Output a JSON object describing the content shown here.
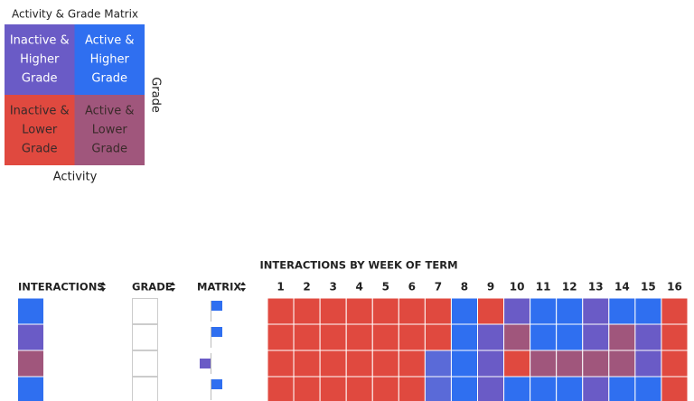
{
  "legend": {
    "title": "Activity & Grade Matrix",
    "cells": [
      {
        "lines": [
          "Inactive &",
          "Higher",
          "Grade"
        ],
        "color": "#6a5bc6",
        "text_color": "#ffffff"
      },
      {
        "lines": [
          "Active &",
          "Higher",
          "Grade"
        ],
        "color": "#2f6ff0",
        "text_color": "#ffffff"
      },
      {
        "lines": [
          "Inactive &",
          "Lower",
          "Grade"
        ],
        "color": "#e0493f",
        "text_color": "#3a2a2a"
      },
      {
        "lines": [
          "Active &",
          "Lower",
          "Grade"
        ],
        "color": "#a0567c",
        "text_color": "#3a2a2a"
      }
    ],
    "y_axis_label": "Grade",
    "x_axis_label": "Activity"
  },
  "table": {
    "title": "INTERACTIONS BY WEEK OF TERM",
    "columns": [
      "INTERACTIONS",
      "GRADE",
      "MATRIX"
    ],
    "weeks": [
      1,
      2,
      3,
      4,
      5,
      6,
      7,
      8,
      9,
      10,
      11,
      12,
      13,
      14,
      15,
      16
    ],
    "rows": [
      {
        "interactions": "#2f6ff0",
        "matrix": "#2f6ff0",
        "cells": [
          "#e0493f",
          "#e0493f",
          "#e0493f",
          "#e0493f",
          "#e0493f",
          "#e0493f",
          "#e0493f",
          "#2f6ff0",
          "#e0493f",
          "#6a5bc6",
          "#2f6ff0",
          "#2f6ff0",
          "#6a5bc6",
          "#2f6ff0",
          "#2f6ff0",
          "#e0493f"
        ]
      },
      {
        "interactions": "#6a5bc6",
        "matrix": "#2f6ff0",
        "cells": [
          "#e0493f",
          "#e0493f",
          "#e0493f",
          "#e0493f",
          "#e0493f",
          "#e0493f",
          "#e0493f",
          "#2f6ff0",
          "#6a5bc6",
          "#a0567c",
          "#2f6ff0",
          "#2f6ff0",
          "#6a5bc6",
          "#a0567c",
          "#6a5bc6",
          "#e0493f"
        ]
      },
      {
        "interactions": "#a0567c",
        "matrix": "#6a5bc6",
        "cells": [
          "#e0493f",
          "#e0493f",
          "#e0493f",
          "#e0493f",
          "#e0493f",
          "#e0493f",
          "#5a6ad8",
          "#2f6ff0",
          "#6a5bc6",
          "#e0493f",
          "#a0567c",
          "#a0567c",
          "#a0567c",
          "#a0567c",
          "#6a5bc6",
          "#e0493f"
        ]
      },
      {
        "interactions": "#2f6ff0",
        "matrix": "#2f6ff0",
        "cells": [
          "#e0493f",
          "#e0493f",
          "#e0493f",
          "#e0493f",
          "#e0493f",
          "#e0493f",
          "#5a6ad8",
          "#2f6ff0",
          "#6a5bc6",
          "#2f6ff0",
          "#2f6ff0",
          "#2f6ff0",
          "#6a5bc6",
          "#2f6ff0",
          "#2f6ff0",
          "#e0493f"
        ]
      }
    ]
  }
}
